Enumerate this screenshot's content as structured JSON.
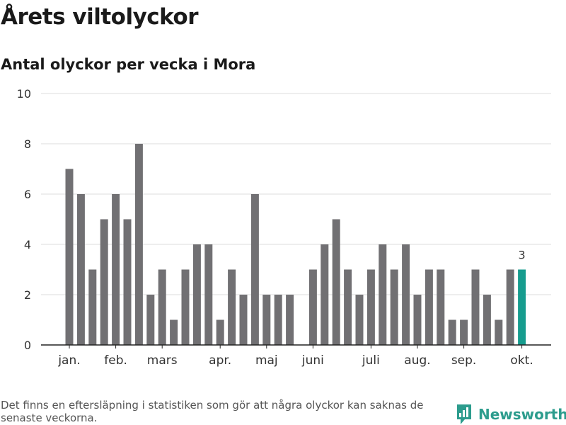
{
  "header": {
    "title": "Årets viltolyckor",
    "subtitle": "Antal olyckor per vecka i Mora"
  },
  "footer": {
    "note": "Det finns en eftersläpning i statistiken som gör att några olyckor kan saknas de senaste veckorna.",
    "brand": "Newsworthy"
  },
  "colors": {
    "bar": "#717073",
    "highlight": "#169c8e",
    "grid": "#dddddd",
    "brand": "#2c9c8d"
  },
  "chart_data": {
    "type": "bar",
    "title": "Antal olyckor per vecka i Mora",
    "xlabel": "",
    "ylabel": "",
    "ylim": [
      0,
      10
    ],
    "yticks": [
      0,
      2,
      4,
      6,
      8,
      10
    ],
    "grid": true,
    "x": [
      1,
      2,
      3,
      4,
      5,
      6,
      7,
      8,
      9,
      10,
      11,
      12,
      13,
      14,
      15,
      16,
      17,
      18,
      19,
      20,
      21,
      22,
      23,
      24,
      25,
      26,
      27,
      28,
      29,
      30,
      31,
      32,
      33,
      34,
      35,
      36,
      37,
      38,
      39,
      40
    ],
    "values": [
      7,
      6,
      3,
      5,
      6,
      5,
      8,
      2,
      3,
      1,
      3,
      4,
      4,
      1,
      3,
      2,
      6,
      2,
      2,
      2,
      0,
      3,
      4,
      5,
      3,
      2,
      3,
      4,
      3,
      4,
      2,
      3,
      3,
      1,
      1,
      3,
      2,
      1,
      3,
      3
    ],
    "month_ticks": [
      {
        "label": "jan.",
        "week": 1
      },
      {
        "label": "feb.",
        "week": 5
      },
      {
        "label": "mars",
        "week": 9
      },
      {
        "label": "apr.",
        "week": 14
      },
      {
        "label": "maj",
        "week": 18
      },
      {
        "label": "juni",
        "week": 22
      },
      {
        "label": "juli",
        "week": 27
      },
      {
        "label": "aug.",
        "week": 31
      },
      {
        "label": "sep.",
        "week": 35
      },
      {
        "label": "okt.",
        "week": 40
      }
    ],
    "highlight_week": 40,
    "annotations": [
      {
        "week": 40,
        "text": "3"
      }
    ]
  }
}
